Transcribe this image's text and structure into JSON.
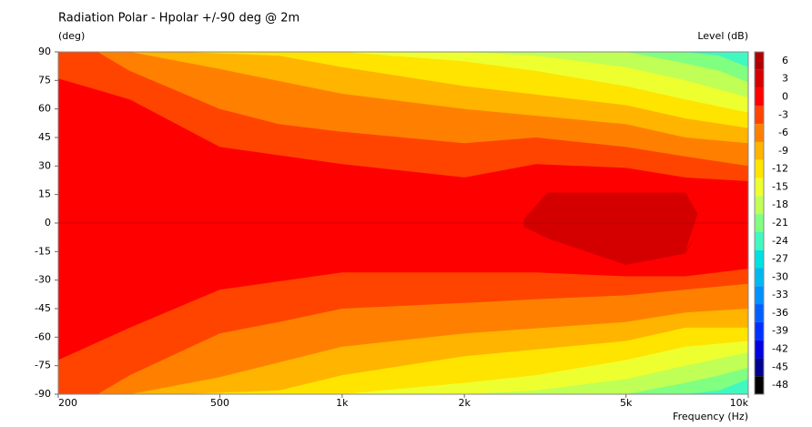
{
  "chart_data": {
    "type": "contour",
    "title": "Radiation Polar - Hpolar +/-90 deg @ 2m",
    "y_label": "(deg)",
    "x_label": "Frequency  (Hz)",
    "log_x": true,
    "xlim": [
      200,
      10000
    ],
    "xticks": [
      200,
      500,
      {
        "value": 1000,
        "label": "1k"
      },
      {
        "value": 2000,
        "label": "2k"
      },
      {
        "value": 5000,
        "label": "5k"
      },
      {
        "value": 10000,
        "label": "10k"
      }
    ],
    "ylim": [
      -90,
      90
    ],
    "yticks": [
      90,
      75,
      60,
      45,
      30,
      15,
      0,
      -15,
      -30,
      -45,
      -60,
      -75,
      -90
    ],
    "colorbar": {
      "label": "Level  (dB)",
      "levels": [
        6,
        3,
        0,
        -3,
        -6,
        -9,
        -12,
        -15,
        -18,
        -21,
        -24,
        -27,
        -30,
        -33,
        -36,
        -39,
        -42,
        -45,
        -48
      ],
      "colors": [
        "#b00000",
        "#d40000",
        "#ff0000",
        "#ff4400",
        "#ff8000",
        "#ffb400",
        "#ffe400",
        "#eeff30",
        "#c0ff55",
        "#80ff80",
        "#40f8c0",
        "#00e0e0",
        "#00b8f0",
        "#0090ff",
        "#0060ff",
        "#0030ff",
        "#0000e0",
        "#000090",
        "#000000"
      ]
    },
    "contours": [
      {
        "level": -24,
        "x": [
          200,
          10000
        ],
        "upper": [
          90,
          90
        ],
        "lower": [
          -90,
          -90
        ]
      },
      {
        "level": -21,
        "x": [
          200,
          5000,
          7000,
          8500,
          10000
        ],
        "upper": [
          90,
          90,
          90,
          88,
          82
        ],
        "lower": [
          -90,
          -90,
          -90,
          -88,
          -82
        ]
      },
      {
        "level": -18,
        "x": [
          200,
          5000,
          7000,
          8500,
          10000
        ],
        "upper": [
          90,
          90,
          84,
          80,
          74
        ],
        "lower": [
          -90,
          -90,
          -84,
          -80,
          -76
        ]
      },
      {
        "level": -15,
        "x": [
          200,
          2000,
          3000,
          5000,
          7000,
          10000
        ],
        "upper": [
          90,
          90,
          88,
          82,
          75,
          66
        ],
        "lower": [
          -90,
          -90,
          -88,
          -82,
          -75,
          -68
        ]
      },
      {
        "level": -12,
        "x": [
          200,
          1000,
          2000,
          3000,
          5000,
          7000,
          10000
        ],
        "upper": [
          90,
          90,
          85,
          80,
          72,
          65,
          58
        ],
        "lower": [
          -90,
          -90,
          -84,
          -80,
          -72,
          -65,
          -62
        ]
      },
      {
        "level": -9,
        "x": [
          200,
          400,
          700,
          1000,
          2000,
          5000,
          7000,
          10000
        ],
        "upper": [
          90,
          90,
          88,
          82,
          72,
          62,
          55,
          50
        ],
        "lower": [
          -90,
          -90,
          -88,
          -80,
          -70,
          -62,
          -55,
          -55
        ]
      },
      {
        "level": -6,
        "x": [
          200,
          300,
          500,
          1000,
          2000,
          5000,
          7000,
          10000
        ],
        "upper": [
          90,
          90,
          81,
          68,
          60,
          52,
          45,
          42
        ],
        "lower": [
          -90,
          -90,
          -81,
          -65,
          -58,
          -52,
          -47,
          -45
        ]
      },
      {
        "level": -3,
        "x": [
          200,
          250,
          300,
          500,
          700,
          1000,
          2000,
          3000,
          5000,
          7000,
          10000
        ],
        "upper": [
          90,
          90,
          80,
          60,
          52,
          48,
          42,
          45,
          40,
          35,
          30
        ],
        "lower": [
          -90,
          -90,
          -80,
          -58,
          -52,
          -45,
          -42,
          -40,
          -38,
          -35,
          -32
        ]
      },
      {
        "level": 0,
        "x": [
          200,
          300,
          500,
          1000,
          2000,
          3000,
          5000,
          7000,
          10000
        ],
        "upper": [
          76,
          65,
          40,
          31,
          24,
          31,
          29,
          24,
          22
        ],
        "lower": [
          -72,
          -55,
          -35,
          -26,
          -26,
          -26,
          -28,
          -28,
          -24
        ]
      },
      {
        "level": 3,
        "x": [
          2800,
          3200,
          5000,
          7000,
          7500,
          7000,
          3200
        ],
        "upper": [
          2,
          16,
          16,
          16,
          5,
          -15,
          -8
        ],
        "lower": [
          -2,
          -8,
          -22,
          -16,
          -5,
          -15,
          -8
        ]
      }
    ]
  }
}
